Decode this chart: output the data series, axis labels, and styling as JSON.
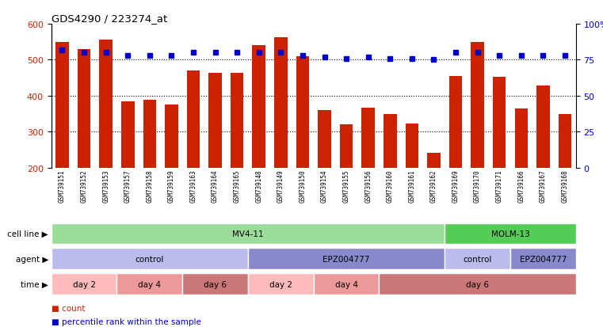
{
  "title": "GDS4290 / 223274_at",
  "samples": [
    "GSM739151",
    "GSM739152",
    "GSM739153",
    "GSM739157",
    "GSM739158",
    "GSM739159",
    "GSM739163",
    "GSM739164",
    "GSM739165",
    "GSM739148",
    "GSM739149",
    "GSM739150",
    "GSM739154",
    "GSM739155",
    "GSM739156",
    "GSM739160",
    "GSM739161",
    "GSM739162",
    "GSM739169",
    "GSM739170",
    "GSM739171",
    "GSM739166",
    "GSM739167",
    "GSM739168"
  ],
  "counts": [
    550,
    530,
    555,
    385,
    388,
    375,
    470,
    463,
    463,
    540,
    562,
    510,
    360,
    320,
    367,
    350,
    322,
    242,
    455,
    550,
    453,
    365,
    428,
    350
  ],
  "percentile_ranks": [
    82,
    80,
    80,
    78,
    78,
    78,
    80,
    80,
    80,
    80,
    80,
    78,
    77,
    76,
    77,
    76,
    76,
    75,
    80,
    80,
    78,
    78,
    78,
    78
  ],
  "bar_color": "#CC2200",
  "dot_color": "#0000CC",
  "ylim": [
    200,
    600
  ],
  "y2lim": [
    0,
    100
  ],
  "yticks": [
    200,
    300,
    400,
    500,
    600
  ],
  "y2ticks": [
    0,
    25,
    50,
    75,
    100
  ],
  "grid_lines": [
    300,
    400,
    500
  ],
  "cl_data": [
    [
      "MV4-11",
      0,
      18,
      "#99DD99"
    ],
    [
      "MOLM-13",
      18,
      24,
      "#55CC55"
    ]
  ],
  "ag_data": [
    [
      "control",
      0,
      9,
      "#BBBBEE"
    ],
    [
      "EPZ004777",
      9,
      18,
      "#8888CC"
    ],
    [
      "control",
      18,
      21,
      "#BBBBEE"
    ],
    [
      "EPZ004777",
      21,
      24,
      "#8888CC"
    ]
  ],
  "tm_data": [
    [
      "day 2",
      0,
      3,
      "#FFBBBB"
    ],
    [
      "day 4",
      3,
      6,
      "#EE9999"
    ],
    [
      "day 6",
      6,
      9,
      "#CC7777"
    ],
    [
      "day 2",
      9,
      12,
      "#FFBBBB"
    ],
    [
      "day 4",
      12,
      15,
      "#EE9999"
    ],
    [
      "day 6",
      15,
      24,
      "#CC7777"
    ]
  ],
  "row_labels": [
    "cell line",
    "agent",
    "time"
  ],
  "legend": [
    [
      "count",
      "#CC2200"
    ],
    [
      "percentile rank within the sample",
      "#0000CC"
    ]
  ]
}
